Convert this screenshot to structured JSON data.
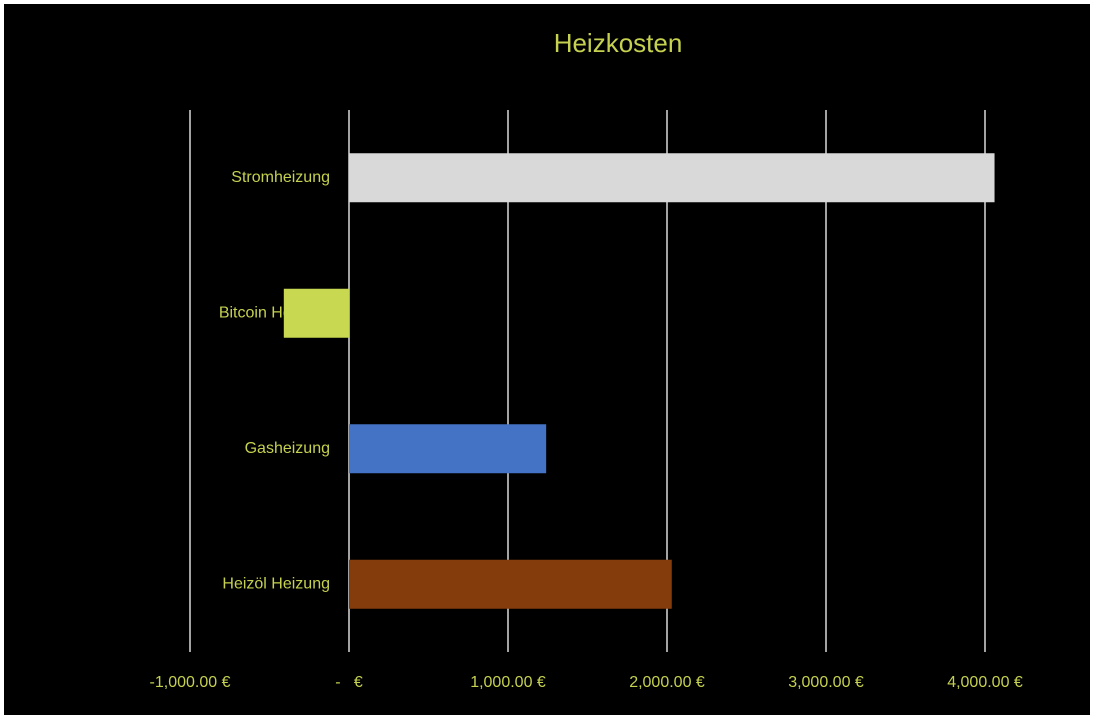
{
  "chart_data": {
    "type": "barh",
    "title": "Heizkosten",
    "categories": [
      "Stromheizung",
      "Bitcoin Heizung",
      "Gasheizung",
      "Heizöl Heizung"
    ],
    "values": [
      4060,
      -410,
      1240,
      2030
    ],
    "colors": [
      "#d9d9d9",
      "#c8d951",
      "#4472c4",
      "#843c0c"
    ],
    "xlim": [
      -1000,
      4000
    ],
    "xticks": [
      {
        "value": -1000,
        "label": "-1,000.00 €"
      },
      {
        "value": 0,
        "label": "-   €"
      },
      {
        "value": 1000,
        "label": "1,000.00 €"
      },
      {
        "value": 2000,
        "label": "2,000.00 €"
      },
      {
        "value": 3000,
        "label": "3,000.00 €"
      },
      {
        "value": 4000,
        "label": "4,000.00 €"
      }
    ],
    "grid": true
  }
}
